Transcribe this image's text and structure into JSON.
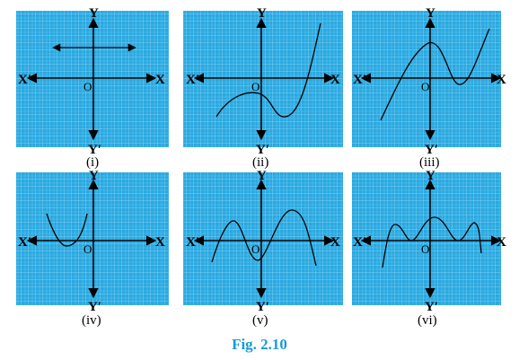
{
  "figure_caption": "Fig. 2.10",
  "colors": {
    "panel_bg": "#29a8e0",
    "grid_minor": "#7fd0f2",
    "grid_major": "#d8f4ff",
    "axis": "#000000",
    "curve": "#000000",
    "caption": "#1a9ad6"
  },
  "panels": [
    {
      "caption": "(i)",
      "x_label": "X",
      "x_neg_label": "X′",
      "y_label": "Y",
      "y_neg_label": "Y′",
      "origin": "O",
      "graph": "horizontal-line-with-arrows"
    },
    {
      "caption": "(ii)",
      "x_label": "X",
      "x_neg_label": "X′",
      "y_label": "Y",
      "y_neg_label": "Y′",
      "origin": "O",
      "graph": "cubic-curve"
    },
    {
      "caption": "(iii)",
      "x_label": "X",
      "x_neg_label": "X′",
      "y_label": "Y",
      "y_neg_label": "Y′",
      "origin": "O",
      "graph": "cubic-curve"
    },
    {
      "caption": "(iv)",
      "x_label": "X",
      "x_neg_label": "X′",
      "y_label": "Y",
      "y_neg_label": "Y′",
      "origin": "O",
      "graph": "parabola"
    },
    {
      "caption": "(v)",
      "x_label": "X",
      "x_neg_label": "X′",
      "y_label": "Y",
      "y_neg_label": "Y′",
      "origin": "O",
      "graph": "quartic-curve"
    },
    {
      "caption": "(vi)",
      "x_label": "X",
      "x_neg_label": "X′",
      "y_label": "Y",
      "y_neg_label": "Y′",
      "origin": "O",
      "graph": "multi-turn-curve"
    }
  ]
}
